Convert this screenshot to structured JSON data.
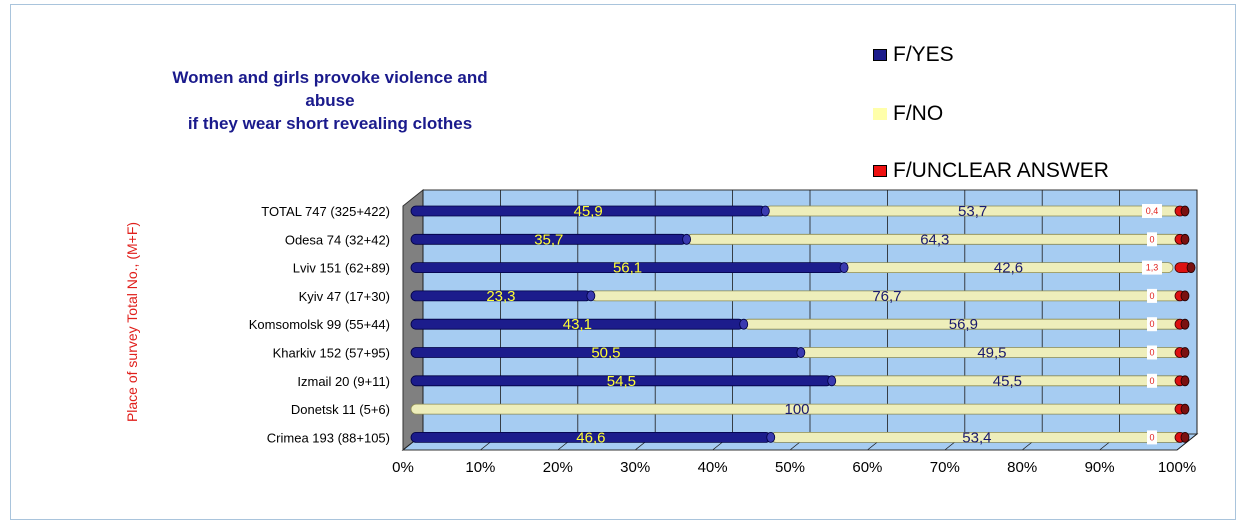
{
  "chart_data": {
    "type": "bar",
    "orientation": "horizontal",
    "stacked": "100%",
    "title": [
      "Women and girls provoke violence and abuse",
      "if they wear short revealing clothes"
    ],
    "ylabel": "Place of survey Total No., (M+F)",
    "xlabel": "",
    "xlim": [
      0,
      100
    ],
    "xticks": [
      "0%",
      "10%",
      "20%",
      "30%",
      "40%",
      "50%",
      "60%",
      "70%",
      "80%",
      "90%",
      "100%"
    ],
    "categories": [
      "TOTAL 747 (325+422)",
      "Odesa 74 (32+42)",
      "Lviv 151 (62+89)",
      "Kyiv 47 (17+30)",
      "Komsomolsk 99 (55+44)",
      "Kharkiv 152 (57+95)",
      "Izmail 20 (9+11)",
      "Donetsk 11 (5+6)",
      "Crimea 193 (88+105)"
    ],
    "series": [
      {
        "name": "F/YES",
        "color": "#1c1c8c",
        "values": [
          45.9,
          35.7,
          56.1,
          23.3,
          43.1,
          50.5,
          54.5,
          0,
          46.6
        ],
        "labels": [
          "45,9",
          "35,7",
          "56,1",
          "23,3",
          "43,1",
          "50,5",
          "54,5",
          "",
          "46,6"
        ]
      },
      {
        "name": "F/NO",
        "color": "#eeeebb",
        "values": [
          53.7,
          64.3,
          42.6,
          76.7,
          56.9,
          49.5,
          45.5,
          100,
          53.4
        ],
        "labels": [
          "53,7",
          "64,3",
          "42,6",
          "76,7",
          "56,9",
          "49,5",
          "45,5",
          "100",
          "53,4"
        ]
      },
      {
        "name": "F/UNCLEAR ANSWER",
        "color": "#dd1111",
        "values": [
          0.4,
          0,
          1.3,
          0,
          0,
          0,
          0,
          0,
          0
        ],
        "labels": [
          "0,4",
          "0",
          "1,3",
          "0",
          "0",
          "0",
          "0",
          "",
          "0"
        ]
      }
    ],
    "legend_position": "top-right",
    "grid": true,
    "plot_background": "#a6ccf2"
  }
}
